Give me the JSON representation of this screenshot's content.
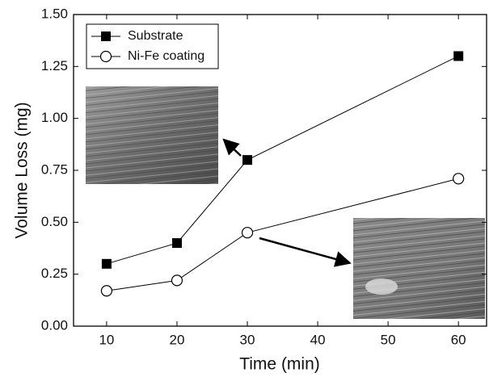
{
  "chart_data": {
    "type": "line",
    "x_label": "Time (min)",
    "y_label": "Volume Loss (mg)",
    "x": [
      10,
      20,
      30,
      60
    ],
    "series": [
      {
        "name": "Substrate",
        "color": "#000000",
        "marker": "square",
        "values": [
          0.3,
          0.4,
          0.8,
          1.3
        ]
      },
      {
        "name": "Ni-Fe coating",
        "color": "#000000",
        "marker": "circle",
        "values": [
          0.17,
          0.22,
          0.45,
          0.71
        ]
      }
    ],
    "xlim": [
      5.3,
      64
    ],
    "ylim": [
      0,
      1.5
    ],
    "xticks": [
      10,
      20,
      30,
      40,
      50,
      60
    ],
    "yticks": [
      {
        "value": 0,
        "label": "0.00"
      },
      {
        "value": 0.25,
        "label": "0.25"
      },
      {
        "value": 0.5,
        "label": "0.50"
      },
      {
        "value": 0.75,
        "label": "0.75"
      },
      {
        "value": 1,
        "label": "1.00"
      },
      {
        "value": 1.25,
        "label": "1.25"
      },
      {
        "value": 1.5,
        "label": "1.50"
      }
    ],
    "legend": "upper left",
    "grid": false
  }
}
